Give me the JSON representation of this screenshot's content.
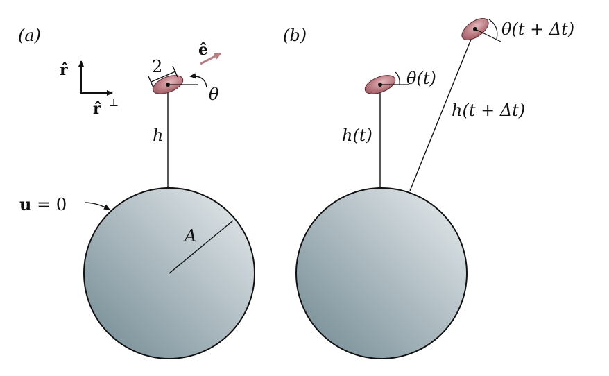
{
  "panels": {
    "a": {
      "panel_label": "(a)",
      "basis_r": "r̂",
      "basis_r_perp": "r̂",
      "basis_r_perp_sup": "⊥",
      "length_label": "2",
      "direction_label": "ê",
      "angle_label": "θ",
      "height_label": "h",
      "radius_label": "A",
      "boundary_lhs": "u",
      "boundary_rhs": " = 0"
    },
    "b": {
      "panel_label": "(b)",
      "angle_now": "θ(t)",
      "height_now": "h(t)",
      "angle_later": "θ(t + Δt)",
      "height_later": "h(t + Δt)"
    }
  },
  "colors": {
    "sphere_dark": "#6f8790",
    "sphere_light": "#e9edf0",
    "swimmer_dark": "#9a4f58",
    "swimmer_light": "#e6b8bc",
    "direction_arrow": "#b87d82",
    "stroke": "#111111"
  }
}
